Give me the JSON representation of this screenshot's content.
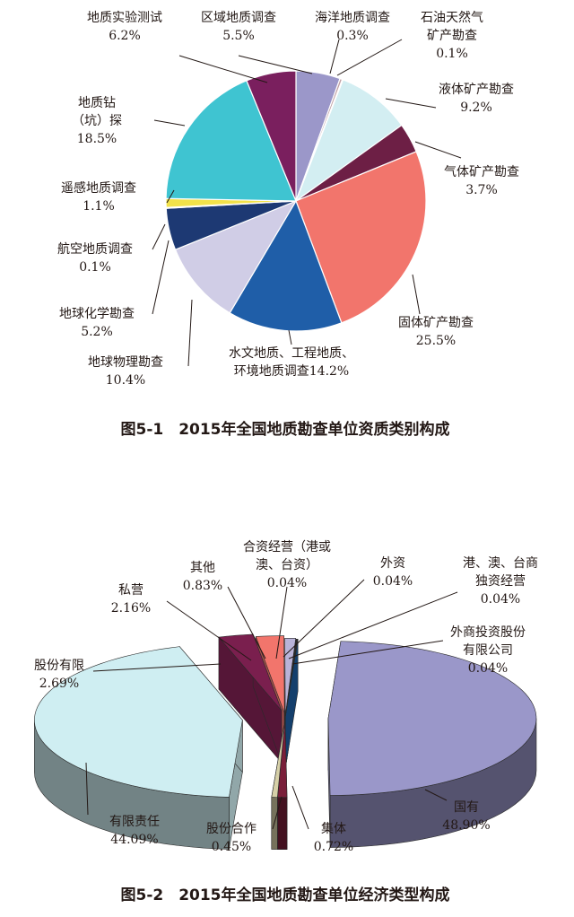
{
  "chart_data": [
    {
      "type": "pie",
      "caption": "图5-1　2015年全国地质勘查单位资质类别构成",
      "slices": [
        {
          "name": "区域地质调查",
          "label_lines": [
            "区域地质调查"
          ],
          "pct_text": "5.5%",
          "value": 5.5,
          "color": "#9b97c9"
        },
        {
          "name": "海洋地质调查",
          "label_lines": [
            "海洋地质调查"
          ],
          "pct_text": "0.3%",
          "value": 0.3,
          "color": "#c0a0a4"
        },
        {
          "name": "石油天然气矿产勘查",
          "label_lines": [
            "石油天然气",
            "矿产勘查"
          ],
          "pct_text": "0.1%",
          "value": 0.1,
          "color": "#d9d9d9"
        },
        {
          "name": "液体矿产勘查",
          "label_lines": [
            "液体矿产勘查"
          ],
          "pct_text": "9.2%",
          "value": 9.2,
          "color": "#d3eef2"
        },
        {
          "name": "气体矿产勘查",
          "label_lines": [
            "气体矿产勘查"
          ],
          "pct_text": "3.7%",
          "value": 3.7,
          "color": "#6d1f45"
        },
        {
          "name": "固体矿产勘查",
          "label_lines": [
            "固体矿产勘查"
          ],
          "pct_text": "25.5%",
          "value": 25.5,
          "color": "#f2756c"
        },
        {
          "name": "水文地质、工程地质、环境地质调查",
          "label_lines": [
            "水文地质、工程地质、",
            "环境地质调查14.2%"
          ],
          "pct_text": "",
          "value": 14.2,
          "color": "#1f5ea8"
        },
        {
          "name": "地球物理勘查",
          "label_lines": [
            "地球物理勘查"
          ],
          "pct_text": "10.4%",
          "value": 10.4,
          "color": "#d0cde6"
        },
        {
          "name": "地球化学勘查",
          "label_lines": [
            "地球化学勘查"
          ],
          "pct_text": "5.2%",
          "value": 5.2,
          "color": "#1d3973"
        },
        {
          "name": "航空地质调查",
          "label_lines": [
            "航空地质调查"
          ],
          "pct_text": "0.1%",
          "value": 0.1,
          "color": "#2b4d88"
        },
        {
          "name": "遥感地质调查",
          "label_lines": [
            "遥感地质调查"
          ],
          "pct_text": "1.1%",
          "value": 1.1,
          "color": "#f2e24a"
        },
        {
          "name": "地质钻（坑）探",
          "label_lines": [
            "地质钻",
            "（坑）探"
          ],
          "pct_text": "18.5%",
          "value": 18.5,
          "color": "#3fc4d1"
        },
        {
          "name": "地质实验测试",
          "label_lines": [
            "地质实验测试"
          ],
          "pct_text": "6.2%",
          "value": 6.2,
          "color": "#7a1f5e"
        }
      ]
    },
    {
      "type": "pie",
      "caption": "图5-2　2015年全国地质勘查单位经济类型构成",
      "slices": [
        {
          "name": "国有",
          "label_lines": [
            "国有"
          ],
          "pct_text": "48.90%",
          "value": 48.9,
          "color": "#9a97c9"
        },
        {
          "name": "集体",
          "label_lines": [
            "集体"
          ],
          "pct_text": "0.72%",
          "value": 0.72,
          "color": "#7a1f3a"
        },
        {
          "name": "股份合作",
          "label_lines": [
            "股份合作"
          ],
          "pct_text": "0.45%",
          "value": 0.45,
          "color": "#d6d0a8"
        },
        {
          "name": "有限责任",
          "label_lines": [
            "有限责任"
          ],
          "pct_text": "44.09%",
          "value": 44.09,
          "color": "#cfeef2"
        },
        {
          "name": "股份有限",
          "label_lines": [
            "股份有限"
          ],
          "pct_text": "2.69%",
          "value": 2.69,
          "color": "#7a1f4e"
        },
        {
          "name": "私营",
          "label_lines": [
            "私营"
          ],
          "pct_text": "2.16%",
          "value": 2.16,
          "color": "#f2756c"
        },
        {
          "name": "其他",
          "label_lines": [
            "其他"
          ],
          "pct_text": "0.83%",
          "value": 0.83,
          "color": "#b9b3d8"
        },
        {
          "name": "合资经营（港或澳、台资）",
          "label_lines": [
            "合资经营（港或",
            "澳、台资）"
          ],
          "pct_text": "0.04%",
          "value": 0.04,
          "color": "#3a3a7a"
        },
        {
          "name": "外资",
          "label_lines": [
            "外资"
          ],
          "pct_text": "0.04%",
          "value": 0.04,
          "color": "#2a5d9f"
        },
        {
          "name": "港、澳、台商独资经营",
          "label_lines": [
            "港、澳、台商",
            "独资经营"
          ],
          "pct_text": "0.04%",
          "value": 0.04,
          "color": "#2f7fc0"
        },
        {
          "name": "外商投资股份有限公司",
          "label_lines": [
            "外商投资股份",
            "有限公司"
          ],
          "pct_text": "0.04%",
          "value": 0.04,
          "color": "#1d5a9a"
        }
      ]
    }
  ]
}
